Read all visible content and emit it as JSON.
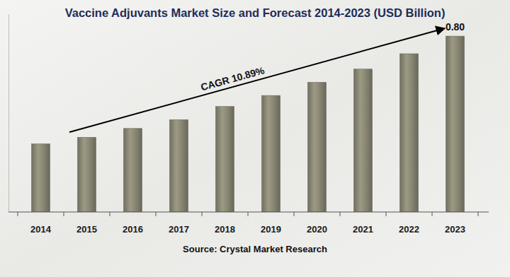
{
  "chart_data": {
    "type": "bar",
    "title": "Vaccine Adjuvants Market Size and Forecast 2014-2023 (USD Billion)",
    "categories": [
      "2014",
      "2015",
      "2016",
      "2017",
      "2018",
      "2019",
      "2020",
      "2021",
      "2022",
      "2023"
    ],
    "values": [
      0.31,
      0.34,
      0.38,
      0.42,
      0.48,
      0.53,
      0.59,
      0.65,
      0.72,
      0.8
    ],
    "value_labels": [
      null,
      null,
      null,
      null,
      null,
      null,
      null,
      null,
      null,
      "0.80"
    ],
    "data_labels": true,
    "color": "#8c8a76",
    "ylim": [
      0,
      0.9
    ],
    "tick_labels": "x",
    "grid": false,
    "annotation": "CAGR 10.89%",
    "source": "Source: Crystal Market Research"
  }
}
